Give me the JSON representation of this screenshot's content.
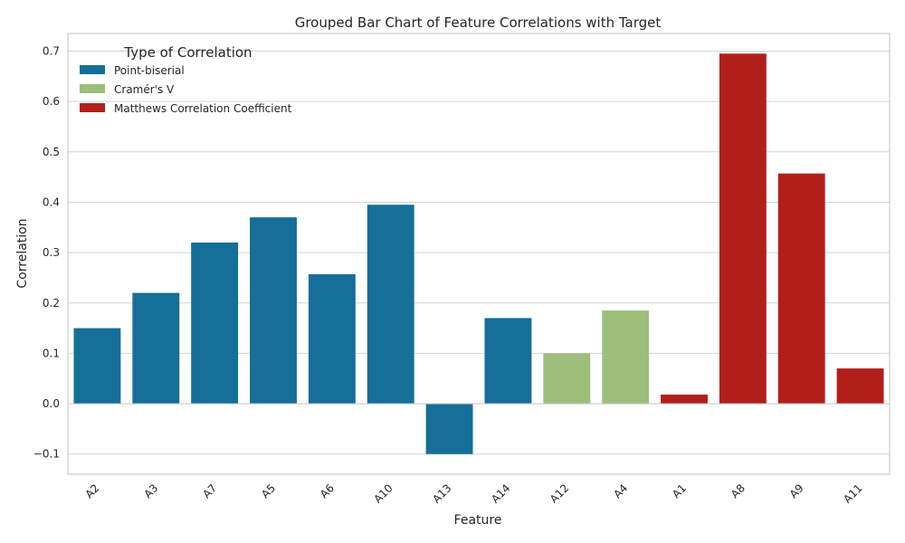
{
  "chart_data": {
    "type": "bar",
    "title": "Grouped Bar Chart of Feature Correlations with Target",
    "xlabel": "Feature",
    "ylabel": "Correlation",
    "ylim": [
      -0.14,
      0.735
    ],
    "yticks": [
      -0.1,
      0.0,
      0.1,
      0.2,
      0.3,
      0.4,
      0.5,
      0.6,
      0.7
    ],
    "ytick_labels": [
      "−0.1",
      "0.0",
      "0.1",
      "0.2",
      "0.3",
      "0.4",
      "0.5",
      "0.6",
      "0.7"
    ],
    "grid": true,
    "legend": {
      "title": "Type of Correlation",
      "position": "top-left",
      "entries": [
        {
          "label": "Point-biserial",
          "color": "#156f98"
        },
        {
          "label": "Cramér's V",
          "color": "#9ebe7c"
        },
        {
          "label": "Matthews Correlation Coefficient",
          "color": "#b21f1b"
        }
      ]
    },
    "categories": [
      "A2",
      "A3",
      "A7",
      "A5",
      "A6",
      "A10",
      "A13",
      "A14",
      "A12",
      "A4",
      "A1",
      "A8",
      "A9",
      "A11"
    ],
    "values": [
      0.15,
      0.22,
      0.32,
      0.37,
      0.257,
      0.395,
      -0.1,
      0.17,
      0.1,
      0.185,
      0.018,
      0.695,
      0.457,
      0.07
    ],
    "groups": [
      0,
      0,
      0,
      0,
      0,
      0,
      0,
      0,
      1,
      1,
      2,
      2,
      2,
      2
    ]
  }
}
